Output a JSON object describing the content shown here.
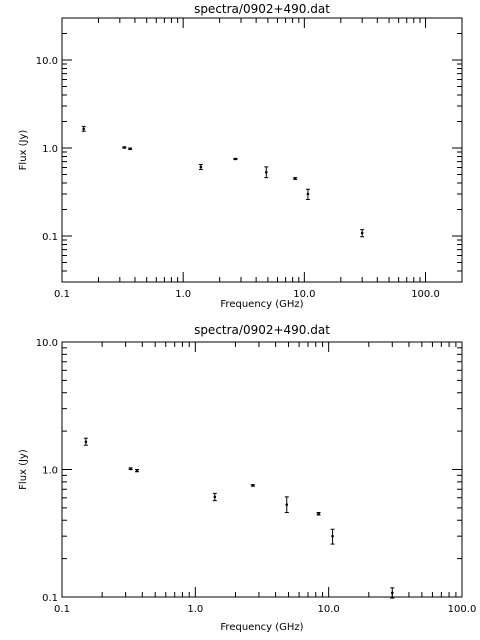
{
  "chart_data": [
    {
      "type": "scatter",
      "title": "spectra/0902+490.dat",
      "xlabel": "Frequency (GHz)",
      "ylabel": "Flux (Jy)",
      "x_scale": "log",
      "y_scale": "log",
      "xlim": [
        0.1,
        200
      ],
      "ylim": [
        0.03,
        30
      ],
      "x_ticks": [
        0.1,
        1.0,
        10.0,
        100.0
      ],
      "x_tick_labels": [
        "0.1",
        "1.0",
        "10.0",
        "100.0"
      ],
      "y_ticks": [
        0.1,
        1.0,
        10.0
      ],
      "y_tick_labels": [
        "0.1",
        "1.0",
        "10.0"
      ],
      "grid": false,
      "series": [
        {
          "points": [
            {
              "x": 0.151,
              "y": 1.65,
              "lo": 1.55,
              "hi": 1.76
            },
            {
              "x": 0.327,
              "y": 1.01,
              "lo": 1.0,
              "hi": 1.03
            },
            {
              "x": 0.365,
              "y": 0.98,
              "lo": 0.96,
              "hi": 1.0
            },
            {
              "x": 1.4,
              "y": 0.61,
              "lo": 0.57,
              "hi": 0.65
            },
            {
              "x": 2.7,
              "y": 0.75,
              "lo": 0.74,
              "hi": 0.76
            },
            {
              "x": 4.85,
              "y": 0.53,
              "lo": 0.46,
              "hi": 0.61
            },
            {
              "x": 8.4,
              "y": 0.45,
              "lo": 0.44,
              "hi": 0.46
            },
            {
              "x": 10.7,
              "y": 0.3,
              "lo": 0.26,
              "hi": 0.34
            },
            {
              "x": 30.0,
              "y": 0.108,
              "lo": 0.098,
              "hi": 0.118
            }
          ]
        }
      ]
    },
    {
      "type": "scatter",
      "title": "spectra/0902+490.dat",
      "xlabel": "Frequency (GHz)",
      "ylabel": "Flux (Jy)",
      "x_scale": "log",
      "y_scale": "log",
      "xlim": [
        0.1,
        100
      ],
      "ylim": [
        0.1,
        10
      ],
      "x_ticks": [
        0.1,
        1.0,
        10.0,
        100.0
      ],
      "x_tick_labels": [
        "0.1",
        "1.0",
        "10.0",
        "100.0"
      ],
      "y_ticks": [
        0.1,
        1.0,
        10.0
      ],
      "y_tick_labels": [
        "0.1",
        "1.0",
        "10.0"
      ],
      "grid": false,
      "series": [
        {
          "points": [
            {
              "x": 0.151,
              "y": 1.65,
              "lo": 1.55,
              "hi": 1.76
            },
            {
              "x": 0.327,
              "y": 1.01,
              "lo": 1.0,
              "hi": 1.03
            },
            {
              "x": 0.365,
              "y": 0.98,
              "lo": 0.96,
              "hi": 1.0
            },
            {
              "x": 1.4,
              "y": 0.61,
              "lo": 0.57,
              "hi": 0.65
            },
            {
              "x": 2.7,
              "y": 0.75,
              "lo": 0.74,
              "hi": 0.76
            },
            {
              "x": 4.85,
              "y": 0.53,
              "lo": 0.46,
              "hi": 0.61
            },
            {
              "x": 8.4,
              "y": 0.45,
              "lo": 0.44,
              "hi": 0.46
            },
            {
              "x": 10.7,
              "y": 0.3,
              "lo": 0.26,
              "hi": 0.34
            },
            {
              "x": 30.0,
              "y": 0.108,
              "lo": 0.098,
              "hi": 0.118
            }
          ]
        }
      ]
    }
  ]
}
